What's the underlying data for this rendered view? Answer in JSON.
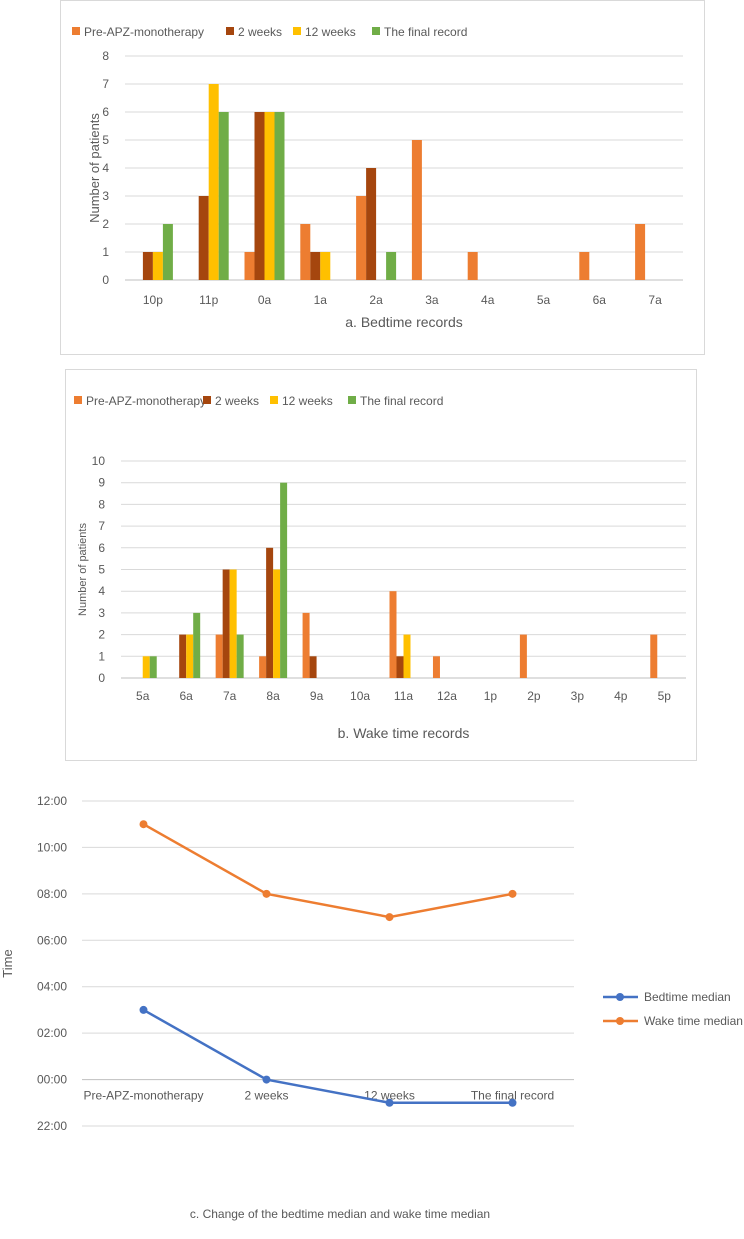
{
  "colors": {
    "pre": "#ED7D31",
    "w2": "#A5460E",
    "w12": "#FFC000",
    "final": "#70AD47",
    "bed_line": "#4472C4",
    "wake_line": "#ED7D31",
    "grid": "#d9d9d9",
    "text": "#595959"
  },
  "chart_data": [
    {
      "type": "bar",
      "title": "a. Bedtime records",
      "xlabel": "a. Bedtime records",
      "ylabel": "Number  of patients",
      "ylim": [
        0,
        8
      ],
      "yticks": [
        "0",
        "1",
        "2",
        "3",
        "4",
        "5",
        "6",
        "7",
        "8"
      ],
      "legend_position": "top",
      "categories": [
        "10p",
        "11p",
        "0a",
        "1a",
        "2a",
        "3a",
        "4a",
        "5a",
        "6a",
        "7a"
      ],
      "series": [
        {
          "name": "Pre-APZ-monotherapy",
          "color_key": "pre",
          "values": [
            0,
            0,
            1,
            2,
            3,
            5,
            1,
            0,
            1,
            2
          ]
        },
        {
          "name": "2 weeks",
          "color_key": "w2",
          "values": [
            1,
            3,
            6,
            1,
            4,
            0,
            0,
            0,
            0,
            0
          ]
        },
        {
          "name": "12 weeks",
          "color_key": "w12",
          "values": [
            1,
            7,
            6,
            1,
            0,
            0,
            0,
            0,
            0,
            0
          ]
        },
        {
          "name": "The final record",
          "color_key": "final",
          "values": [
            2,
            6,
            6,
            0,
            1,
            0,
            0,
            0,
            0,
            0
          ]
        }
      ]
    },
    {
      "type": "bar",
      "title": "b. Wake time records",
      "xlabel": "b. Wake time records",
      "ylabel": "Number  of patients",
      "ylim": [
        0,
        10
      ],
      "yticks": [
        "0",
        "1",
        "2",
        "3",
        "4",
        "5",
        "6",
        "7",
        "8",
        "9",
        "10"
      ],
      "legend_position": "top",
      "categories": [
        "5a",
        "6a",
        "7a",
        "8a",
        "9a",
        "10a",
        "11a",
        "12a",
        "1p",
        "2p",
        "3p",
        "4p",
        "5p"
      ],
      "series": [
        {
          "name": "Pre-APZ-monotherapy",
          "color_key": "pre",
          "values": [
            0,
            0,
            2,
            1,
            3,
            0,
            4,
            1,
            0,
            2,
            0,
            0,
            2
          ]
        },
        {
          "name": "2 weeks",
          "color_key": "w2",
          "values": [
            0,
            2,
            5,
            6,
            1,
            0,
            1,
            0,
            0,
            0,
            0,
            0,
            0
          ]
        },
        {
          "name": "12 weeks",
          "color_key": "w12",
          "values": [
            1,
            2,
            5,
            5,
            0,
            0,
            2,
            0,
            0,
            0,
            0,
            0,
            0
          ]
        },
        {
          "name": "The final record",
          "color_key": "final",
          "values": [
            1,
            3,
            2,
            9,
            0,
            0,
            0,
            0,
            0,
            0,
            0,
            0,
            0
          ]
        }
      ]
    },
    {
      "type": "line",
      "title": "c. Change of the bedtime median and wake time median",
      "xlabel": "c. Change of the bedtime median and wake time median",
      "ylabel": "Time",
      "ylim": [
        -2,
        12
      ],
      "yticks": [
        "22:00",
        "00:00",
        "02:00",
        "04:00",
        "06:00",
        "08:00",
        "10:00",
        "12:00"
      ],
      "legend_position": "right",
      "categories": [
        "Pre-APZ-monotherapy",
        "2 weeks",
        "12 weeks",
        "The final record"
      ],
      "series": [
        {
          "name": "Bedtime median",
          "color_key": "bed_line",
          "values": [
            3,
            0,
            -1,
            -1
          ]
        },
        {
          "name": "Wake time median",
          "color_key": "wake_line",
          "values": [
            11,
            8,
            7,
            8
          ]
        }
      ]
    }
  ]
}
